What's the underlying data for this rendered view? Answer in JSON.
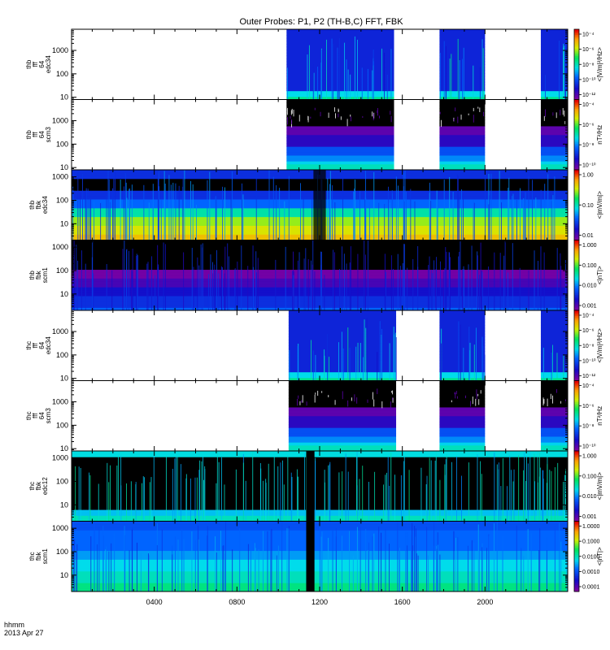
{
  "chart_data": {
    "type": "heatmap",
    "title": "Outer Probes: P1, P2 (TH-B,C) FFT, FBK",
    "x_axis": {
      "label_lines": [
        "hhmm",
        "2013 Apr 27"
      ],
      "range_hhmm": [
        "0000",
        "2400"
      ],
      "tick_labels": [
        "0400",
        "0800",
        "1200",
        "1600",
        "2000"
      ],
      "tick_values_hours": [
        4,
        8,
        12,
        16,
        20
      ]
    },
    "panels": [
      {
        "ylabel": [
          "thb",
          "fff",
          "64",
          "edc34"
        ],
        "y_log": true,
        "ylim": [
          8,
          8000
        ],
        "ytick_labels": [
          "10",
          "100",
          "1000"
        ],
        "ytick_values": [
          10,
          100,
          1000
        ],
        "zlabel": "<|V/m|²/Hz>",
        "z_tick_labels": [
          "10⁻⁴",
          "10⁻⁶",
          "10⁻⁸",
          "10⁻¹⁰",
          "10⁻¹²"
        ],
        "colormap": "rainbow",
        "pattern": "fft_e",
        "data_intervals_hours": [
          [
            10.4,
            15.6
          ],
          [
            17.8,
            20.0
          ],
          [
            22.7,
            24.0
          ]
        ]
      },
      {
        "ylabel": [
          "thb",
          "fff",
          "64",
          "scm3"
        ],
        "y_log": true,
        "ylim": [
          8,
          8000
        ],
        "ytick_labels": [
          "10",
          "100",
          "1000"
        ],
        "ytick_values": [
          10,
          100,
          1000
        ],
        "zlabel": "nT²/Hz",
        "z_tick_labels": [
          "10⁻⁴",
          "10⁻⁶",
          "10⁻⁸",
          "10⁻¹⁰"
        ],
        "colormap": "rainbow",
        "pattern": "fft_b",
        "data_intervals_hours": [
          [
            10.4,
            15.6
          ],
          [
            17.8,
            20.0
          ],
          [
            22.7,
            24.0
          ]
        ]
      },
      {
        "ylabel": [
          "thb",
          "fbk",
          "edc34"
        ],
        "y_log": true,
        "ylim": [
          2,
          2000
        ],
        "ytick_labels": [
          "10",
          "100",
          "1000"
        ],
        "ytick_values": [
          10,
          100,
          1000
        ],
        "zlabel": "<|mV/m|>",
        "z_tick_labels": [
          "1.00",
          "0.10",
          "0.01"
        ],
        "colormap": "rainbow",
        "pattern": "fbk_e_b",
        "data_intervals_hours": [
          [
            0.0,
            24.0
          ]
        ]
      },
      {
        "ylabel": [
          "thb",
          "fbk",
          "scm1"
        ],
        "y_log": true,
        "ylim": [
          2,
          2000
        ],
        "ytick_labels": [
          "10",
          "100",
          "1000"
        ],
        "ytick_values": [
          10,
          100,
          1000
        ],
        "zlabel": "<|nT|>",
        "z_tick_labels": [
          "1.000",
          "0.100",
          "0.010",
          "0.001"
        ],
        "colormap": "rainbow",
        "pattern": "fbk_b_b",
        "data_intervals_hours": [
          [
            0.0,
            24.0
          ]
        ]
      },
      {
        "ylabel": [
          "thc",
          "fff",
          "64",
          "edc34"
        ],
        "y_log": true,
        "ylim": [
          8,
          8000
        ],
        "ytick_labels": [
          "10",
          "100",
          "1000"
        ],
        "ytick_values": [
          10,
          100,
          1000
        ],
        "zlabel": "<|V/m|²/Hz>",
        "z_tick_labels": [
          "10⁻⁴",
          "10⁻⁶",
          "10⁻⁸",
          "10⁻¹⁰",
          "10⁻¹²"
        ],
        "colormap": "rainbow",
        "pattern": "fft_e",
        "data_intervals_hours": [
          [
            10.5,
            15.7
          ],
          [
            17.8,
            20.0
          ],
          [
            22.7,
            24.0
          ]
        ]
      },
      {
        "ylabel": [
          "thc",
          "fff",
          "64",
          "scm3"
        ],
        "y_log": true,
        "ylim": [
          8,
          8000
        ],
        "ytick_labels": [
          "10",
          "100",
          "1000"
        ],
        "ytick_values": [
          10,
          100,
          1000
        ],
        "zlabel": "nT²/Hz",
        "z_tick_labels": [
          "10⁻⁴",
          "10⁻⁶",
          "10⁻⁸",
          "10⁻¹⁰"
        ],
        "colormap": "rainbow",
        "pattern": "fft_b",
        "data_intervals_hours": [
          [
            10.5,
            15.7
          ],
          [
            17.8,
            20.0
          ],
          [
            22.7,
            24.0
          ]
        ]
      },
      {
        "ylabel": [
          "thc",
          "fbk",
          "edc12"
        ],
        "y_log": true,
        "ylim": [
          2,
          2000
        ],
        "ytick_labels": [
          "10",
          "100",
          "1000"
        ],
        "ytick_values": [
          10,
          100,
          1000
        ],
        "zlabel": "<|mV/m|>",
        "z_tick_labels": [
          "1.000",
          "0.100",
          "0.010",
          "0.001"
        ],
        "colormap": "rainbow",
        "pattern": "fbk_e_c",
        "data_intervals_hours": [
          [
            0.0,
            24.0
          ]
        ]
      },
      {
        "ylabel": [
          "thc",
          "fbk",
          "scm1"
        ],
        "y_log": true,
        "ylim": [
          2,
          2000
        ],
        "ytick_labels": [
          "10",
          "100",
          "1000"
        ],
        "ytick_values": [
          10,
          100,
          1000
        ],
        "zlabel": "<|nT|>",
        "z_tick_labels": [
          "1.0000",
          "0.1000",
          "0.0100",
          "0.0010",
          "0.0001"
        ],
        "colormap": "rainbow",
        "pattern": "fbk_b_c",
        "data_intervals_hours": [
          [
            0.0,
            24.0
          ]
        ]
      }
    ]
  }
}
